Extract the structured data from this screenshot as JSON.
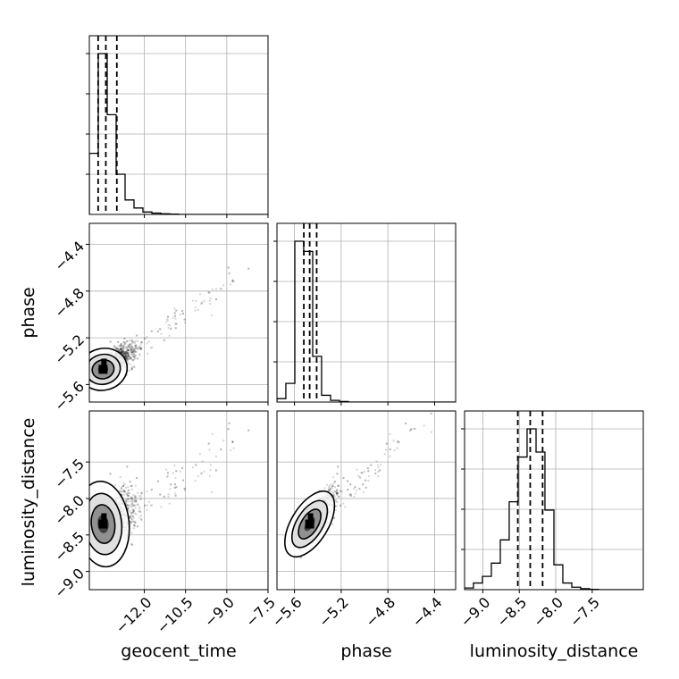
{
  "chart_data": {
    "type": "corner",
    "parameters": [
      "geocent_time",
      "phase",
      "luminosity_distance"
    ],
    "grid": true,
    "ranges": {
      "geocent_time": [
        -14.0,
        -7.5
      ],
      "phase": [
        -5.75,
        -4.22
      ],
      "luminosity_distance": [
        -9.25,
        -6.8
      ]
    },
    "ticks": {
      "geocent_time": [
        -12.0,
        -10.5,
        -9.0,
        -7.5
      ],
      "phase": [
        -5.6,
        -5.2,
        -4.8,
        -4.4
      ],
      "luminosity_distance": [
        -9.0,
        -8.5,
        -8.0,
        -7.5
      ]
    },
    "tick_labels": {
      "geocent_time": [
        "−12.0",
        "−10.5",
        "−9.0",
        "−7.5"
      ],
      "phase": [
        "−5.6",
        "−5.2",
        "−4.8",
        "−4.4"
      ],
      "luminosity_distance": [
        "−9.0",
        "−8.5",
        "−8.0",
        "−7.5"
      ]
    },
    "quantiles": {
      "geocent_time": [
        -13.68,
        -13.4,
        -13.0
      ],
      "phase": [
        -5.52,
        -5.47,
        -5.41
      ],
      "luminosity_distance": [
        -8.52,
        -8.35,
        -8.18
      ]
    },
    "histograms": {
      "geocent_time": {
        "edges": [
          -14.0,
          -13.675,
          -13.35,
          -13.025,
          -12.7,
          -12.375,
          -12.05,
          -11.725,
          -11.4,
          -11.075,
          -10.75
        ],
        "counts": [
          0.38,
          1.0,
          0.62,
          0.25,
          0.09,
          0.04,
          0.015,
          0.008,
          0.004,
          0.002
        ]
      },
      "phase": {
        "edges": [
          -5.75,
          -5.674,
          -5.597,
          -5.521,
          -5.444,
          -5.368,
          -5.291,
          -5.215,
          -5.138
        ],
        "counts": [
          0.02,
          0.11,
          0.95,
          0.89,
          0.27,
          0.04,
          0.01,
          0.003
        ]
      },
      "luminosity_distance": {
        "edges": [
          -9.25,
          -9.128,
          -9.005,
          -8.883,
          -8.76,
          -8.638,
          -8.515,
          -8.393,
          -8.27,
          -8.148,
          -8.025,
          -7.903,
          -7.78,
          -7.658,
          -7.535,
          -7.413
        ],
        "counts": [
          0.01,
          0.04,
          0.08,
          0.16,
          0.3,
          0.53,
          0.8,
          0.97,
          0.83,
          0.48,
          0.15,
          0.04,
          0.015,
          0.006,
          0.002
        ]
      }
    }
  }
}
